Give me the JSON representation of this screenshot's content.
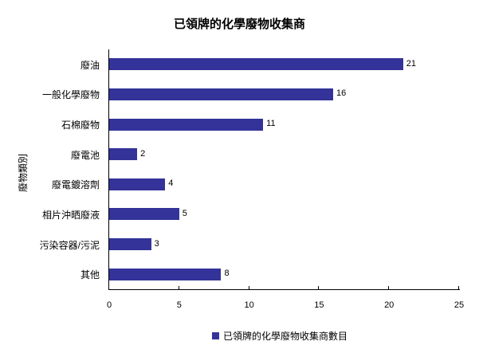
{
  "chart_data": {
    "type": "bar",
    "orientation": "horizontal",
    "title": "已領牌的化學廢物收集商",
    "xlabel": "",
    "ylabel": "廢物類別",
    "categories": [
      "廢油",
      "一般化學廢物",
      "石棉廢物",
      "廢電池",
      "廢電鍍溶劑",
      "相片沖晒廢液",
      "污染容器/污泥",
      "其他"
    ],
    "series": [
      {
        "name": "已領牌的化學廢物收集商數目",
        "values": [
          21,
          16,
          11,
          2,
          4,
          5,
          3,
          8
        ],
        "color": "#333399"
      }
    ],
    "xlim": [
      0,
      25
    ],
    "xticks": [
      "0",
      "5",
      "10",
      "15",
      "20",
      "25"
    ],
    "grid": false,
    "legend_position": "bottom",
    "data_labels": true
  }
}
